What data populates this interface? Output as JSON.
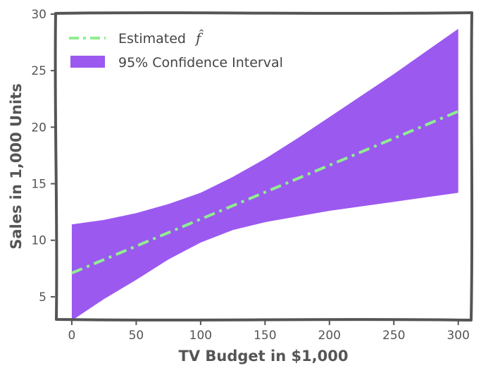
{
  "chart_data": {
    "type": "line",
    "title": "",
    "xlabel": "TV Budget in $1,000",
    "ylabel": "Sales in 1,000 Units",
    "xlim": [
      -12,
      310
    ],
    "ylim": [
      3,
      30
    ],
    "xticks": [
      0,
      50,
      100,
      150,
      200,
      250,
      300
    ],
    "yticks": [
      5,
      10,
      15,
      20,
      25,
      30
    ],
    "xtick_labels": [
      "0",
      "50",
      "100",
      "150",
      "200",
      "250",
      "300"
    ],
    "ytick_labels": [
      "5",
      "10",
      "15",
      "20",
      "25",
      "30"
    ],
    "grid": false,
    "legend_position": "top-left",
    "series": [
      {
        "name": "Estimated",
        "name_math": "f̂",
        "kind": "line",
        "style": "dashdot",
        "color": "#90EE90",
        "x": [
          0,
          300
        ],
        "y": [
          7.1,
          21.4
        ]
      },
      {
        "name": "95% Confidence Interval",
        "kind": "band",
        "color": "#9b59f0",
        "x": [
          0,
          25,
          50,
          75,
          100,
          125,
          150,
          175,
          200,
          225,
          250,
          275,
          300
        ],
        "lower": [
          2.9,
          4.8,
          6.5,
          8.3,
          9.8,
          10.9,
          11.6,
          12.1,
          12.6,
          13.0,
          13.4,
          13.8,
          14.2
        ],
        "upper": [
          11.4,
          11.8,
          12.4,
          13.2,
          14.2,
          15.6,
          17.2,
          19.0,
          20.9,
          22.8,
          24.7,
          26.7,
          28.7
        ]
      }
    ]
  }
}
